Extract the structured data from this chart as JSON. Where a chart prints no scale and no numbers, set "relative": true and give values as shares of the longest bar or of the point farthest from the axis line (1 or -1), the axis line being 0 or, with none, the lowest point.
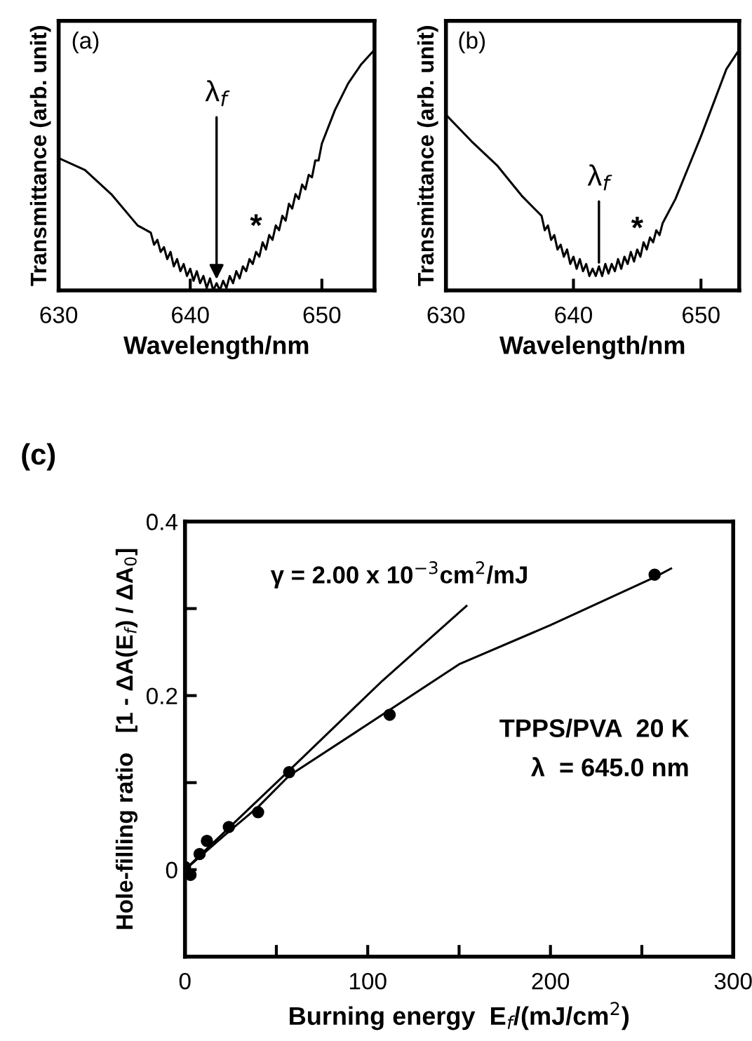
{
  "chart_data": [
    {
      "type": "line",
      "title": "(a)",
      "relative": true,
      "xlabel": "Wavelength/nm",
      "ylabel": "Transmittance (arb. unit)",
      "tick_labels": "x",
      "xlim": [
        630,
        654
      ],
      "xticks": [
        630,
        640,
        650
      ],
      "color": "#000000",
      "x": [
        630,
        632,
        634,
        636,
        637,
        637.25,
        637.5,
        637.75,
        638,
        638.25,
        638.5,
        638.75,
        639,
        639.25,
        639.5,
        639.75,
        640,
        640.25,
        640.5,
        640.75,
        641,
        641.25,
        641.5,
        641.75,
        642,
        642.25,
        642.5,
        642.75,
        643,
        643.25,
        643.5,
        643.75,
        644,
        644.25,
        644.5,
        644.75,
        645,
        645.25,
        645.5,
        645.75,
        646,
        646.25,
        646.5,
        646.75,
        647,
        647.25,
        647.5,
        647.75,
        648,
        648.25,
        648.5,
        648.75,
        649,
        649.25,
        649.5,
        649.75,
        650,
        651,
        652,
        653,
        654
      ],
      "values": [
        0.55,
        0.5,
        0.4,
        0.27,
        0.24,
        0.19,
        0.21,
        0.16,
        0.18,
        0.13,
        0.16,
        0.1,
        0.13,
        0.08,
        0.11,
        0.06,
        0.09,
        0.04,
        0.08,
        0.03,
        0.06,
        0.01,
        0.05,
        0.0,
        0.03,
        0.0,
        0.04,
        0.01,
        0.06,
        0.03,
        0.08,
        0.05,
        0.1,
        0.08,
        0.13,
        0.11,
        0.16,
        0.14,
        0.2,
        0.17,
        0.23,
        0.21,
        0.27,
        0.25,
        0.31,
        0.29,
        0.36,
        0.34,
        0.4,
        0.38,
        0.44,
        0.42,
        0.48,
        0.47,
        0.54,
        0.54,
        0.61,
        0.75,
        0.86,
        0.94,
        1.0
      ],
      "annotations": [
        {
          "text": "λ$_{f}$",
          "x": 642,
          "y": 0.03
        },
        {
          "text": "*",
          "x": 645,
          "y": 0.2
        }
      ]
    },
    {
      "type": "line",
      "title": "(b)",
      "relative": true,
      "xlabel": "Wavelength/nm",
      "ylabel": "Transmittance (arb. unit)",
      "tick_labels": "x",
      "xlim": [
        630,
        653
      ],
      "xticks": [
        630,
        640,
        650
      ],
      "color": "#000000",
      "x": [
        630,
        632,
        634,
        636,
        637.5,
        637.75,
        638,
        638.25,
        638.5,
        638.75,
        639,
        639.25,
        639.5,
        639.75,
        640,
        640.25,
        640.5,
        640.75,
        641,
        641.25,
        641.5,
        641.75,
        642,
        642.25,
        642.5,
        642.75,
        643,
        643.25,
        643.5,
        643.75,
        644,
        644.25,
        644.5,
        644.75,
        645,
        645.25,
        645.5,
        645.75,
        646,
        646.25,
        646.5,
        646.75,
        647,
        648,
        649,
        650,
        651,
        652,
        653
      ],
      "values": [
        0.73,
        0.62,
        0.52,
        0.39,
        0.31,
        0.25,
        0.27,
        0.21,
        0.23,
        0.17,
        0.19,
        0.14,
        0.17,
        0.11,
        0.14,
        0.09,
        0.13,
        0.08,
        0.11,
        0.06,
        0.09,
        0.06,
        0.1,
        0.06,
        0.11,
        0.07,
        0.11,
        0.08,
        0.13,
        0.09,
        0.14,
        0.11,
        0.16,
        0.12,
        0.17,
        0.14,
        0.2,
        0.17,
        0.22,
        0.2,
        0.25,
        0.23,
        0.28,
        0.38,
        0.51,
        0.64,
        0.78,
        0.92,
        1.0
      ],
      "annotations": [
        {
          "text": "λ$_{f}$",
          "x": 642,
          "y": 0.1
        },
        {
          "text": "*",
          "x": 645,
          "y": 0.19
        }
      ]
    },
    {
      "type": "scatter",
      "title": "(c)",
      "xlabel": "Burning energy  E$_{f}$/(mJ/cm$^{2}$)",
      "ylabel": "Hole-filling ratio   [1 - ΔA(E$_{f}$) / ΔA$_{0}$]",
      "xlim": [
        0,
        300
      ],
      "xticks": [
        0,
        {
          "value": 50,
          "label": null
        },
        100,
        {
          "value": 150,
          "label": null
        },
        200,
        {
          "value": 250,
          "label": null
        },
        300
      ],
      "ylim": [
        -0.1,
        0.4
      ],
      "yticks": [
        0,
        {
          "value": 0.1,
          "label": null
        },
        0.2,
        {
          "value": 0.3,
          "label": null
        },
        0.4
      ],
      "series": [
        {
          "type": "scatter",
          "marker": "circle",
          "color": "#000000",
          "x": [
            0,
            3,
            8,
            12,
            24,
            40,
            57,
            112,
            257
          ],
          "values": [
            0.003,
            -0.006,
            0.018,
            0.033,
            0.049,
            0.066,
            0.112,
            0.178,
            0.339
          ]
        },
        {
          "type": "line",
          "color": "#000000",
          "x": [
            0,
            57,
            108,
            154
          ],
          "values": [
            0,
            0.114,
            0.217,
            0.303
          ]
        },
        {
          "type": "line",
          "color": "#000000",
          "x": [
            0,
            23,
            40,
            57,
            100,
            150,
            200,
            257,
            266
          ],
          "values": [
            0,
            0.042,
            0.072,
            0.108,
            0.167,
            0.236,
            0.281,
            0.336,
            0.346
          ]
        }
      ],
      "annotations": [
        {
          "text": "γ = 2.00 x 10$^{−3}$cm$^{2}$/mJ",
          "x": 154,
          "y": 0.303
        },
        "TPPS/PVA  20 K",
        "λ  = 645.0 nm"
      ]
    }
  ]
}
